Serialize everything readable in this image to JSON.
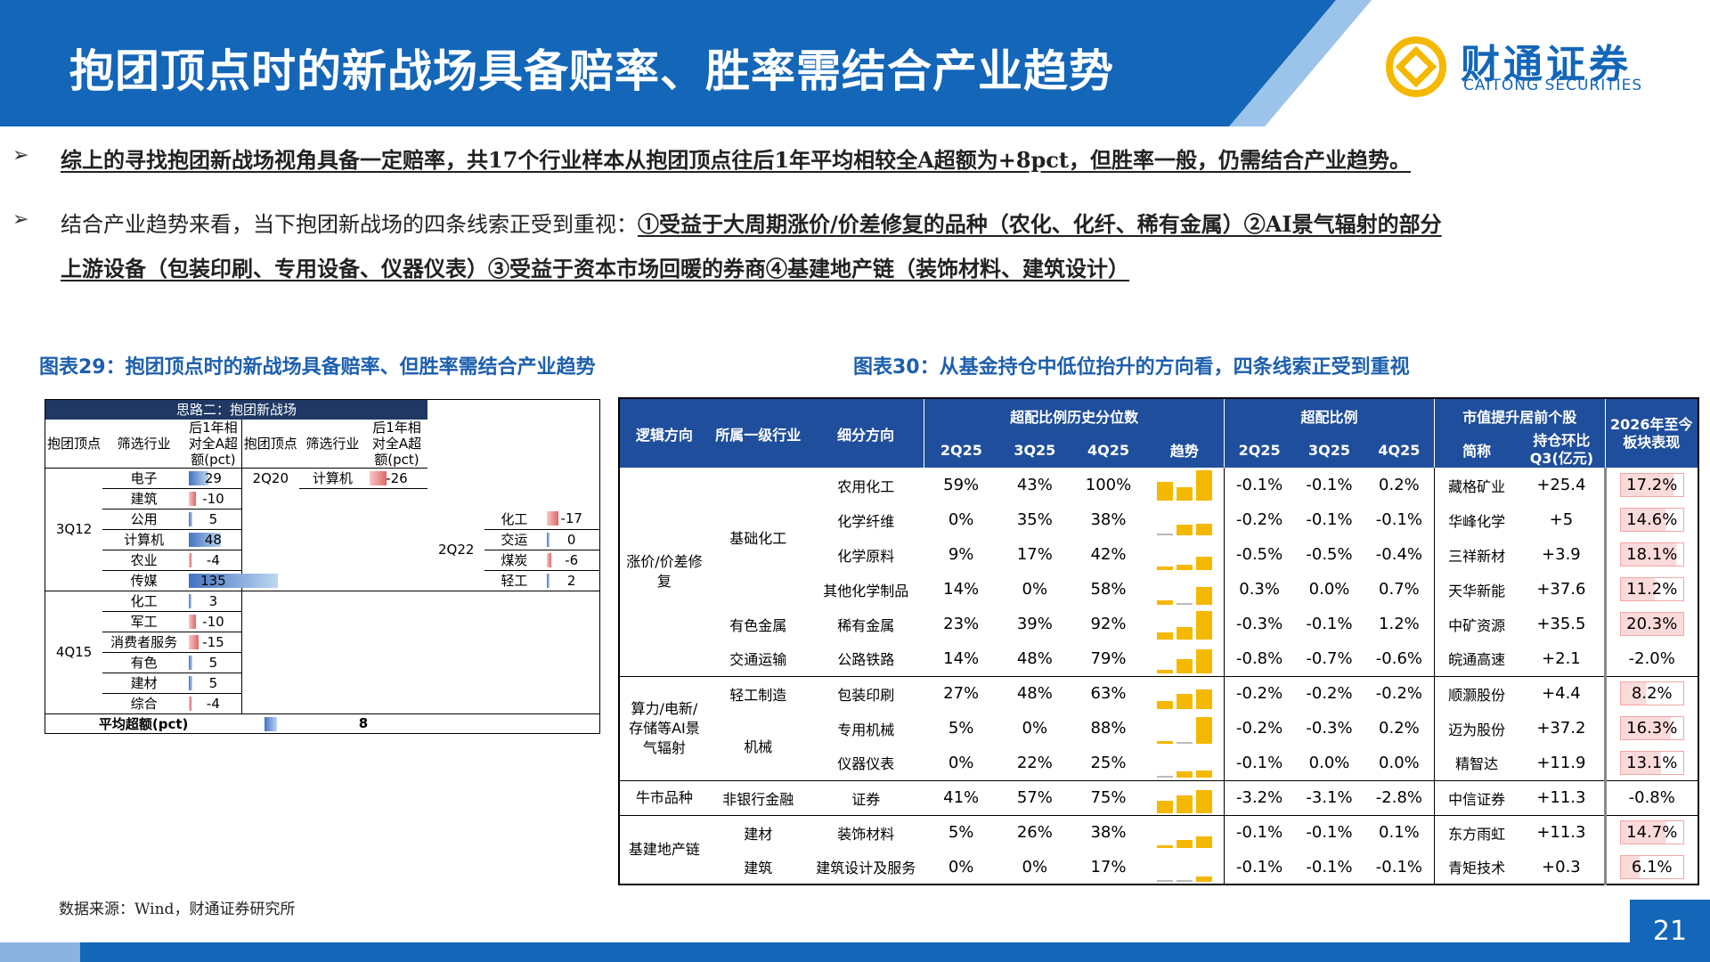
{
  "header": {
    "title": "抱团顶点时的新战场具备赔率、胜率需结合产业趋势",
    "logo_cn": "财通证券",
    "logo_en": "CAITONG SECURITIES"
  },
  "bullets": [
    {
      "marker": "➢",
      "text": "综上的寻找抱团新战场视角具备一定赔率，共17个行业样本从抱团顶点往后1年平均相较全A超额为+8pct，但胜率一般，仍需结合产业趋势。"
    },
    {
      "marker": "➢",
      "lead": "结合产业趋势来看，当下抱团新战场的四条线索正受到重视：",
      "line1_rest": "①受益于大周期涨价/价差修复的品种（农化、化纤、稀有金属）②AI景气辐射的部分",
      "line2": "上游设备（包装印刷、专用设备、仪器仪表）③受益于资本市场回暖的券商④基建地产链（装饰材料、建筑设计）"
    }
  ],
  "chart29": {
    "title": "图表29：抱团顶点时的新战场具备赔率、但胜率需结合产业趋势",
    "top_header": "思路二：抱团新战场",
    "col_headers": [
      "抱团顶点",
      "筛选行业",
      "后1年相对全A超额(pct)",
      "抱团顶点",
      "筛选行业",
      "后1年相对全A超额(pct)"
    ],
    "left_groups": [
      {
        "peak": "3Q12",
        "rows": [
          {
            "industry": "电子",
            "value": 29
          },
          {
            "industry": "建筑",
            "value": -10
          },
          {
            "industry": "公用",
            "value": 5
          },
          {
            "industry": "计算机",
            "value": 48
          },
          {
            "industry": "农业",
            "value": -4
          },
          {
            "industry": "传媒",
            "value": 135
          }
        ]
      },
      {
        "peak": "4Q15",
        "rows": [
          {
            "industry": "化工",
            "value": 3
          },
          {
            "industry": "军工",
            "value": -10
          },
          {
            "industry": "消费者服务",
            "value": -15
          },
          {
            "industry": "有色",
            "value": 5
          },
          {
            "industry": "建材",
            "value": 5
          },
          {
            "industry": "综合",
            "value": -4
          }
        ]
      }
    ],
    "right_groups": [
      {
        "peak": "2Q20",
        "rows": [
          {
            "industry": "计算机",
            "value": -26
          }
        ]
      },
      {
        "peak": "2Q22",
        "rows": [
          {
            "industry": "化工",
            "value": -17
          },
          {
            "industry": "交运",
            "value": 0
          },
          {
            "industry": "煤炭",
            "value": -6
          },
          {
            "industry": "轻工",
            "value": 2
          }
        ]
      }
    ],
    "avg_label": "平均超额(pct)",
    "avg_value": 8,
    "colors": {
      "positive": "#4472c4",
      "negative": "#e06666"
    }
  },
  "chart30": {
    "title": "图表30：从基金持仓中低位抬升的方向看，四条线索正受到重视",
    "headers": {
      "logic": "逻辑方向",
      "level1": "所属一级行业",
      "sub": "细分方向",
      "hist_pct": "超配比例历史分位数",
      "ratio": "超配比例",
      "mcap": "市值提升居前个股",
      "perf": "2026年至今板块表现",
      "quarters": [
        "2Q25",
        "3Q25",
        "4Q25"
      ],
      "trend": "趋势",
      "name": "简称",
      "change": "持仓环比Q3(亿元)"
    },
    "rows": [
      {
        "logic": "涨价/价差修复",
        "level1": "基础化工",
        "sub": "农用化工",
        "p": [
          "59%",
          "43%",
          "100%"
        ],
        "r": [
          "-0.1%",
          "-0.1%",
          "0.2%"
        ],
        "stock": "藏格矿业",
        "chg": "+25.4",
        "perf": "17.2%"
      },
      {
        "logic": "",
        "level1": "",
        "sub": "化学纤维",
        "p": [
          "0%",
          "35%",
          "38%"
        ],
        "r": [
          "-0.2%",
          "-0.1%",
          "-0.1%"
        ],
        "stock": "华峰化学",
        "chg": "+5",
        "perf": "14.6%"
      },
      {
        "logic": "",
        "level1": "",
        "sub": "化学原料",
        "p": [
          "9%",
          "17%",
          "42%"
        ],
        "r": [
          "-0.5%",
          "-0.5%",
          "-0.4%"
        ],
        "stock": "三祥新材",
        "chg": "+3.9",
        "perf": "18.1%"
      },
      {
        "logic": "",
        "level1": "",
        "sub": "其他化学制品",
        "p": [
          "14%",
          "0%",
          "58%"
        ],
        "r": [
          "0.3%",
          "0.0%",
          "0.7%"
        ],
        "stock": "天华新能",
        "chg": "+37.6",
        "perf": "11.2%"
      },
      {
        "logic": "",
        "level1": "有色金属",
        "sub": "稀有金属",
        "p": [
          "23%",
          "39%",
          "92%"
        ],
        "r": [
          "-0.3%",
          "-0.1%",
          "1.2%"
        ],
        "stock": "中矿资源",
        "chg": "+35.5",
        "perf": "20.3%"
      },
      {
        "logic": "",
        "level1": "交通运输",
        "sub": "公路铁路",
        "p": [
          "14%",
          "48%",
          "79%"
        ],
        "r": [
          "-0.8%",
          "-0.7%",
          "-0.6%"
        ],
        "stock": "皖通高速",
        "chg": "+2.1",
        "perf": "-2.0%"
      },
      {
        "logic": "算力/电新/存储等AI景气辐射",
        "level1": "轻工制造",
        "sub": "包装印刷",
        "p": [
          "27%",
          "48%",
          "63%"
        ],
        "r": [
          "-0.2%",
          "-0.2%",
          "-0.2%"
        ],
        "stock": "顺灏股份",
        "chg": "+4.4",
        "perf": "8.2%"
      },
      {
        "logic": "",
        "level1": "机械",
        "sub": "专用机械",
        "p": [
          "5%",
          "0%",
          "88%"
        ],
        "r": [
          "-0.2%",
          "-0.3%",
          "0.2%"
        ],
        "stock": "迈为股份",
        "chg": "+37.2",
        "perf": "16.3%"
      },
      {
        "logic": "",
        "level1": "",
        "sub": "仪器仪表",
        "p": [
          "0%",
          "22%",
          "25%"
        ],
        "r": [
          "-0.1%",
          "0.0%",
          "0.0%"
        ],
        "stock": "精智达",
        "chg": "+11.9",
        "perf": "13.1%"
      },
      {
        "logic": "牛市品种",
        "level1": "非银行金融",
        "sub": "证券",
        "p": [
          "41%",
          "57%",
          "75%"
        ],
        "r": [
          "-3.2%",
          "-3.1%",
          "-2.8%"
        ],
        "stock": "中信证券",
        "chg": "+11.3",
        "perf": "-0.8%"
      },
      {
        "logic": "基建地产链",
        "level1": "建材",
        "sub": "装饰材料",
        "p": [
          "5%",
          "26%",
          "38%"
        ],
        "r": [
          "-0.1%",
          "-0.1%",
          "0.1%"
        ],
        "stock": "东方雨虹",
        "chg": "+11.3",
        "perf": "14.7%"
      },
      {
        "logic": "",
        "level1": "建筑",
        "sub": "建筑设计及服务",
        "p": [
          "0%",
          "0%",
          "17%"
        ],
        "r": [
          "-0.1%",
          "-0.1%",
          "-0.1%"
        ],
        "stock": "青矩技术",
        "chg": "+0.3",
        "perf": "6.1%"
      }
    ],
    "colors": {
      "header": "#1f4e9c",
      "spark": "#f5b800",
      "perf_pos": "#f4a6a6"
    }
  },
  "footer": {
    "source": "数据来源：Wind，财通证券研究所",
    "page": "21"
  }
}
